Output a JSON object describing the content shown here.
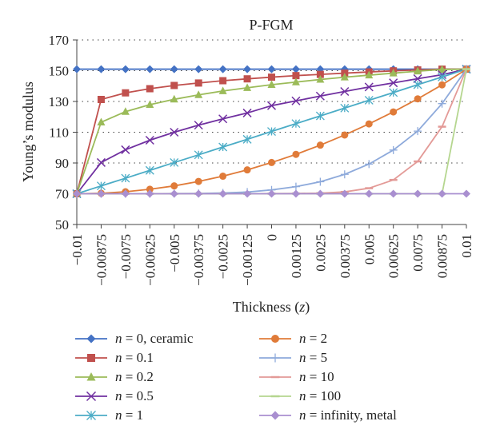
{
  "chart_data": {
    "type": "line",
    "title": "P-FGM",
    "xlabel_text": "Thickness",
    "xlabel_var": "z",
    "ylabel": "Young’s modulus",
    "ylim": [
      50,
      170
    ],
    "yticks": [
      50,
      70,
      90,
      110,
      130,
      150,
      170
    ],
    "ytick_labels": [
      "50",
      "70",
      "90",
      "110",
      "130",
      "150",
      "170"
    ],
    "grid": "dotted horizontal",
    "legend_position": "bottom",
    "categories": [
      "−0.01",
      "−0.00875",
      "−0.0075",
      "−0.00625",
      "−0.005",
      "−0.00375",
      "−0.0025",
      "−0.00125",
      "0",
      "0.00125",
      "0.0025",
      "0.00375",
      "0.005",
      "0.00625",
      "0.0075",
      "0.00875",
      "0.01"
    ],
    "series": [
      {
        "name": "n = 0, ceramic",
        "var": "n",
        "rest": " = 0, ceramic",
        "color": "#4472c4",
        "marker": "diamond",
        "values": [
          151,
          151,
          151,
          151,
          151,
          151,
          151,
          151,
          151,
          151,
          151,
          151,
          151,
          151,
          151,
          151,
          151
        ]
      },
      {
        "name": "n = 0.1",
        "var": "n",
        "rest": " = 0.1",
        "color": "#c0504d",
        "marker": "square",
        "values": [
          70,
          131.3,
          135.6,
          138.3,
          140.4,
          142.0,
          143.5,
          144.7,
          145.8,
          146.8,
          147.6,
          148.4,
          149.2,
          149.9,
          150.5,
          151,
          151
        ]
      },
      {
        "name": "n = 0.2",
        "var": "n",
        "rest": " = 0.2",
        "color": "#9bbb59",
        "marker": "triangle",
        "values": [
          70,
          116.5,
          123.4,
          127.9,
          131.4,
          134.3,
          136.8,
          138.9,
          140.9,
          142.6,
          144.3,
          145.8,
          147.1,
          148.4,
          149.7,
          150.8,
          151
        ]
      },
      {
        "name": "n = 0.5",
        "var": "n",
        "rest": " = 0.5",
        "color": "#7030a0",
        "marker": "x",
        "values": [
          70,
          90.3,
          98.6,
          104.8,
          110.0,
          114.6,
          118.7,
          122.5,
          127.3,
          130.4,
          133.5,
          136.5,
          139.4,
          142.1,
          144.8,
          147.4,
          151
        ]
      },
      {
        "name": "n = 1",
        "var": "n",
        "rest": " = 1",
        "color": "#4bacc6",
        "marker": "asterisk",
        "values": [
          70,
          75.1,
          80.1,
          85.2,
          90.3,
          95.3,
          100.4,
          105.4,
          110.5,
          115.6,
          120.6,
          125.7,
          130.8,
          135.8,
          140.9,
          145.9,
          151
        ]
      },
      {
        "name": "n = 2",
        "var": "n",
        "rest": " = 2",
        "color": "#e07b39",
        "marker": "circle",
        "values": [
          70,
          70.3,
          71.3,
          72.9,
          75.1,
          78.0,
          81.4,
          85.5,
          90.3,
          95.6,
          101.6,
          108.2,
          115.4,
          123.2,
          131.7,
          140.8,
          151
        ]
      },
      {
        "name": "n = 5",
        "var": "n",
        "rest": " = 5",
        "color": "#8eaadb",
        "marker": "plus",
        "values": [
          70,
          70,
          70,
          70,
          70.1,
          70.2,
          70.5,
          71.1,
          72.5,
          74.6,
          77.8,
          82.6,
          89.3,
          98.4,
          110.7,
          128.6,
          151
        ]
      },
      {
        "name": "n = 10",
        "var": "n",
        "rest": " = 10",
        "color": "#e39a97",
        "marker": "dash",
        "values": [
          70,
          70,
          70,
          70,
          70,
          70,
          70,
          70,
          70.1,
          70.2,
          70.4,
          71.2,
          73.6,
          79.0,
          91.0,
          113.6,
          151
        ]
      },
      {
        "name": "n = 100",
        "var": "n",
        "rest": " = 100",
        "color": "#b5d68f",
        "marker": "dash",
        "values": [
          70,
          70,
          70,
          70,
          70,
          70,
          70,
          70,
          70,
          70,
          70,
          70,
          70,
          70,
          70,
          70,
          151
        ]
      },
      {
        "name": "n = infinity, metal",
        "var": "n",
        "rest": " = infinity, metal",
        "color": "#a98fd0",
        "marker": "diamond",
        "values": [
          70,
          70,
          70,
          70,
          70,
          70,
          70,
          70,
          70,
          70,
          70,
          70,
          70,
          70,
          70,
          70,
          70
        ]
      }
    ]
  }
}
